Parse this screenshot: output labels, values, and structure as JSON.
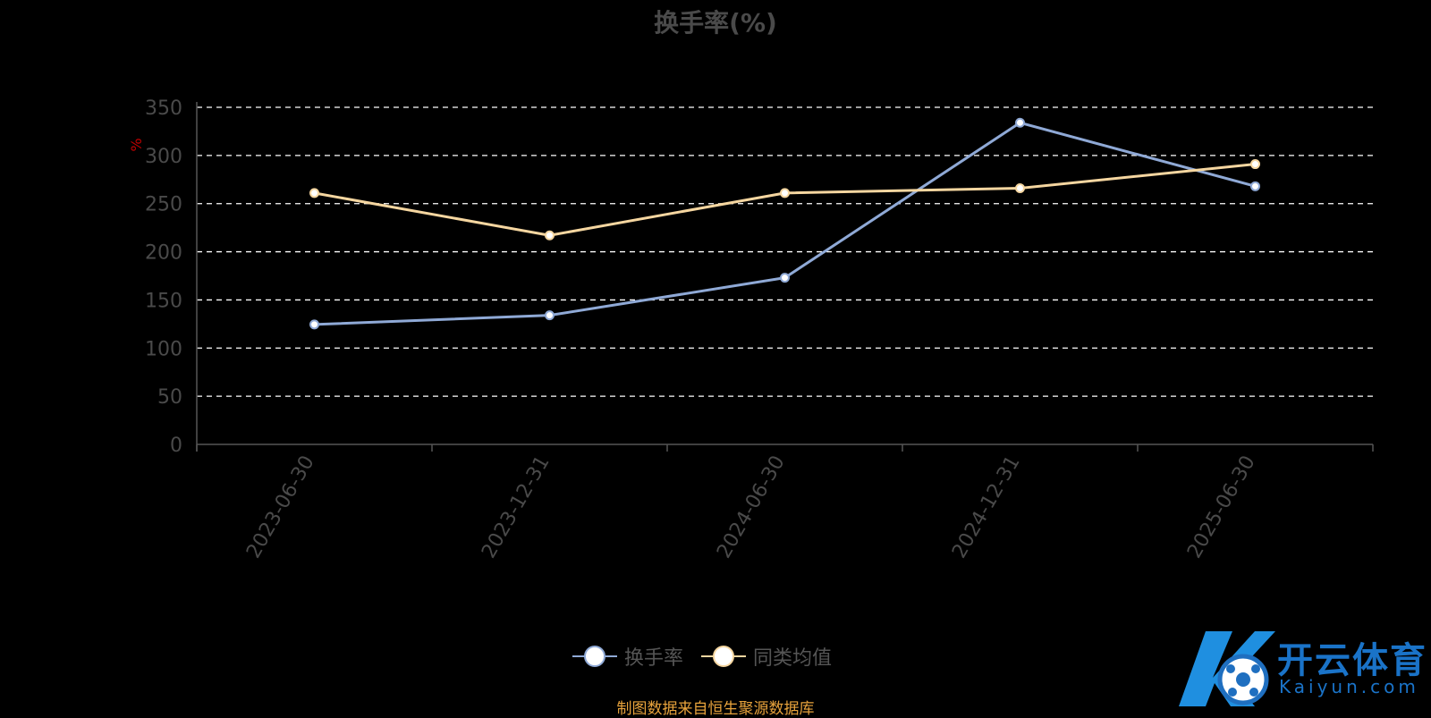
{
  "title": "换手率(%)",
  "unit_label": "%",
  "source": "制图数据来自恒生聚源数据库",
  "logo": {
    "text": "开云体育",
    "sub": "Kaiyun.com"
  },
  "colors": {
    "background": "#000000",
    "series1": "#8fa9d6",
    "series2": "#f5d6a0",
    "grid": "#ffffff",
    "axis": "#4a4a4a",
    "source": "#e8a33c"
  },
  "chart_data": {
    "type": "line",
    "categories": [
      "2023-06-30",
      "2023-12-31",
      "2024-06-30",
      "2024-12-31",
      "2025-06-30"
    ],
    "yticks": [
      "0",
      "50",
      "100",
      "150",
      "200",
      "250",
      "300",
      "350"
    ],
    "ylim": [
      0,
      350
    ],
    "grid": true,
    "legend": "bottom-center",
    "series": [
      {
        "name": "换手率",
        "values": [
          124.5,
          134,
          173,
          334,
          268
        ]
      },
      {
        "name": "同类均值",
        "values": [
          261,
          217,
          261,
          266,
          291
        ]
      }
    ]
  }
}
